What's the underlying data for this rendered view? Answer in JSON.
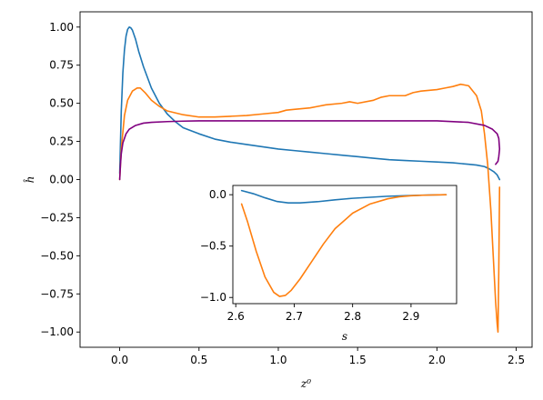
{
  "chart_data": [
    {
      "type": "line",
      "xlabel": "z⁰",
      "ylabel": "ĥ",
      "xlim": [
        -0.25,
        2.6
      ],
      "ylim": [
        -1.1,
        1.1
      ],
      "xticks": [
        0.0,
        0.5,
        1.0,
        1.5,
        2.0,
        2.5
      ],
      "xtick_labels": [
        "0.0",
        "0.5",
        "1.0",
        "1.5",
        "2.0",
        "2.5"
      ],
      "yticks": [
        1.0,
        0.75,
        0.5,
        0.25,
        0.0,
        -0.25,
        -0.5,
        -0.75,
        -1.0
      ],
      "ytick_labels": [
        "1.00",
        "0.75",
        "0.50",
        "0.25",
        "0.00",
        "−0.25",
        "−0.50",
        "−0.75",
        "−1.00"
      ],
      "grid": false,
      "series": [
        {
          "color": "#1f77b4",
          "x": [
            0.0,
            0.005,
            0.01,
            0.02,
            0.03,
            0.04,
            0.05,
            0.06,
            0.07,
            0.08,
            0.09,
            0.1,
            0.12,
            0.15,
            0.2,
            0.25,
            0.3,
            0.35,
            0.4,
            0.5,
            0.6,
            0.7,
            0.8,
            0.9,
            1.0,
            1.1,
            1.2,
            1.3,
            1.4,
            1.5,
            1.6,
            1.7,
            1.8,
            1.9,
            2.0,
            2.1,
            2.2,
            2.25,
            2.3,
            2.33,
            2.36,
            2.38,
            2.395
          ],
          "y": [
            0.04,
            0.25,
            0.45,
            0.7,
            0.85,
            0.94,
            0.985,
            1.0,
            0.995,
            0.98,
            0.95,
            0.92,
            0.84,
            0.74,
            0.6,
            0.5,
            0.43,
            0.38,
            0.34,
            0.3,
            0.265,
            0.245,
            0.23,
            0.215,
            0.2,
            0.19,
            0.18,
            0.17,
            0.16,
            0.15,
            0.14,
            0.13,
            0.125,
            0.12,
            0.115,
            0.11,
            0.1,
            0.095,
            0.085,
            0.07,
            0.05,
            0.03,
            0.0
          ]
        },
        {
          "color": "#ff7f0e",
          "x": [
            0.0,
            0.01,
            0.03,
            0.05,
            0.08,
            0.11,
            0.13,
            0.16,
            0.2,
            0.25,
            0.3,
            0.4,
            0.5,
            0.6,
            0.7,
            0.8,
            0.9,
            1.0,
            1.05,
            1.1,
            1.2,
            1.25,
            1.3,
            1.4,
            1.45,
            1.5,
            1.6,
            1.65,
            1.7,
            1.8,
            1.85,
            1.9,
            2.0,
            2.05,
            2.1,
            2.15,
            2.2,
            2.25,
            2.28,
            2.3,
            2.32,
            2.34,
            2.355,
            2.37,
            2.38,
            2.385,
            2.39,
            2.395
          ],
          "y": [
            0.0,
            0.2,
            0.42,
            0.52,
            0.58,
            0.6,
            0.6,
            0.57,
            0.52,
            0.48,
            0.45,
            0.425,
            0.41,
            0.41,
            0.415,
            0.42,
            0.43,
            0.44,
            0.455,
            0.46,
            0.47,
            0.48,
            0.49,
            0.5,
            0.51,
            0.5,
            0.52,
            0.54,
            0.55,
            0.55,
            0.57,
            0.58,
            0.59,
            0.6,
            0.61,
            0.625,
            0.615,
            0.55,
            0.45,
            0.3,
            0.1,
            -0.2,
            -0.5,
            -0.8,
            -0.95,
            -1.0,
            -0.6,
            -0.05
          ]
        },
        {
          "color": "#800080",
          "x": [
            0.0,
            0.005,
            0.01,
            0.02,
            0.04,
            0.06,
            0.1,
            0.15,
            0.2,
            0.3,
            0.4,
            0.5,
            1.0,
            1.5,
            2.0,
            2.2,
            2.3,
            2.35,
            2.38,
            2.39,
            2.395,
            2.39,
            2.385,
            2.37
          ],
          "y": [
            0.0,
            0.1,
            0.17,
            0.24,
            0.3,
            0.33,
            0.355,
            0.37,
            0.375,
            0.38,
            0.383,
            0.385,
            0.385,
            0.385,
            0.385,
            0.375,
            0.355,
            0.33,
            0.3,
            0.27,
            0.2,
            0.15,
            0.12,
            0.1
          ]
        }
      ]
    },
    {
      "type": "line",
      "xlabel": "s",
      "ylabel": "",
      "xlim": [
        2.595,
        2.978
      ],
      "ylim": [
        -1.06,
        0.09
      ],
      "xticks": [
        2.6,
        2.7,
        2.8,
        2.9
      ],
      "xtick_labels": [
        "2.6",
        "2.7",
        "2.8",
        "2.9"
      ],
      "yticks": [
        0.0,
        -0.5,
        -1.0
      ],
      "ytick_labels": [
        "0.0",
        "−0.5",
        "−1.0"
      ],
      "grid": false,
      "series": [
        {
          "color": "#1f77b4",
          "x": [
            2.61,
            2.63,
            2.65,
            2.67,
            2.69,
            2.71,
            2.74,
            2.77,
            2.8,
            2.83,
            2.86,
            2.9,
            2.93,
            2.96
          ],
          "y": [
            0.04,
            0.01,
            -0.03,
            -0.065,
            -0.08,
            -0.08,
            -0.068,
            -0.05,
            -0.035,
            -0.025,
            -0.015,
            -0.008,
            -0.003,
            0.0
          ]
        },
        {
          "color": "#ff7f0e",
          "x": [
            2.61,
            2.62,
            2.635,
            2.65,
            2.665,
            2.675,
            2.685,
            2.695,
            2.71,
            2.73,
            2.75,
            2.77,
            2.8,
            2.83,
            2.86,
            2.88,
            2.9,
            2.92,
            2.94,
            2.96
          ],
          "y": [
            -0.09,
            -0.26,
            -0.55,
            -0.8,
            -0.95,
            -0.99,
            -0.98,
            -0.93,
            -0.82,
            -0.65,
            -0.48,
            -0.33,
            -0.18,
            -0.09,
            -0.04,
            -0.02,
            -0.01,
            -0.005,
            -0.002,
            0.0
          ]
        }
      ]
    }
  ]
}
